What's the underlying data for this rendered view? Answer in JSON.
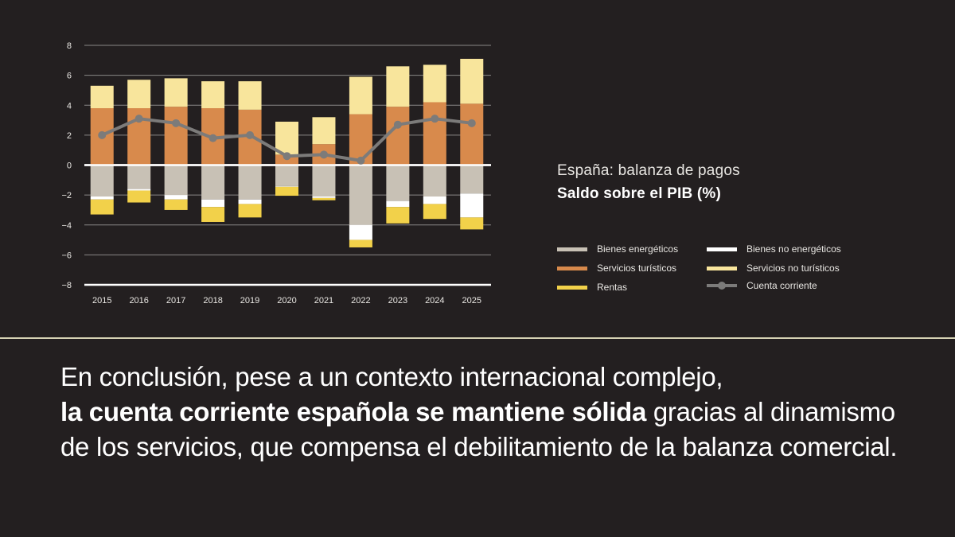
{
  "chart_data": {
    "type": "bar",
    "title": "España: balanza de pagos",
    "subtitle": "Saldo sobre el PIB (%)",
    "categories": [
      "2015",
      "2016",
      "2017",
      "2018",
      "2019",
      "2020",
      "2021",
      "2022",
      "2023",
      "2024",
      "2025"
    ],
    "ylim": [
      -8,
      8
    ],
    "yticks": [
      8,
      6,
      4,
      2,
      0,
      -2,
      -4,
      -6,
      -8
    ],
    "stacked": true,
    "grid": true,
    "legend_position": "right",
    "series": [
      {
        "name": "Bienes energéticos",
        "type": "bar",
        "color": "#c8c1b5",
        "values": [
          -2.1,
          -1.6,
          -2.0,
          -2.3,
          -2.3,
          -1.4,
          -2.1,
          -4.0,
          -2.4,
          -2.1,
          -1.9
        ]
      },
      {
        "name": "Bienes no energéticos",
        "type": "bar",
        "color": "#ffffff",
        "values": [
          -0.2,
          -0.1,
          -0.3,
          -0.5,
          -0.3,
          -0.05,
          -0.1,
          -1.0,
          -0.4,
          -0.5,
          -1.6
        ]
      },
      {
        "name": "Rentas",
        "type": "bar",
        "color": "#f2d14a",
        "values": [
          -1.0,
          -0.8,
          -0.7,
          -1.0,
          -0.9,
          -0.6,
          -0.15,
          -0.5,
          -1.1,
          -1.0,
          -0.8
        ]
      },
      {
        "name": "Servicios turísticos",
        "type": "bar",
        "color": "#d88a4c",
        "values": [
          3.8,
          3.8,
          3.9,
          3.8,
          3.7,
          0.7,
          1.4,
          3.4,
          3.9,
          4.2,
          4.1
        ]
      },
      {
        "name": "Servicios no turísticos",
        "type": "bar",
        "color": "#f8e59c",
        "values": [
          1.5,
          1.9,
          1.9,
          1.8,
          1.9,
          2.2,
          1.8,
          2.5,
          2.7,
          2.5,
          3.0
        ]
      },
      {
        "name": "Cuenta corriente",
        "type": "line",
        "color": "#7c7b7a",
        "values": [
          2.0,
          3.1,
          2.8,
          1.8,
          2.0,
          0.6,
          0.7,
          0.3,
          2.7,
          3.1,
          2.8
        ]
      }
    ]
  },
  "legend": {
    "items": [
      {
        "label": "Bienes energéticos",
        "color": "#c8c1b5"
      },
      {
        "label": "Bienes no energéticos",
        "color": "#ffffff"
      },
      {
        "label": "Servicios turísticos",
        "color": "#d88a4c"
      },
      {
        "label": "Servicios no turísticos",
        "color": "#f8e59c"
      },
      {
        "label": "Rentas",
        "color": "#f2d14a"
      },
      {
        "label": "Cuenta corriente",
        "color": "#7c7b7a"
      }
    ]
  },
  "conclusion": {
    "part1": "En conclusión, pese a un contexto internacional complejo,",
    "bold": "la cuenta corriente española se mantiene sólida",
    "part2": " gracias al dinamismo de los servicios, que compensa el debilitamiento de la balanza comercial."
  },
  "colors": {
    "background": "#231f20",
    "separator": "#d6d2b4",
    "grid": "#8a8786",
    "zero_line": "#ffffff"
  }
}
